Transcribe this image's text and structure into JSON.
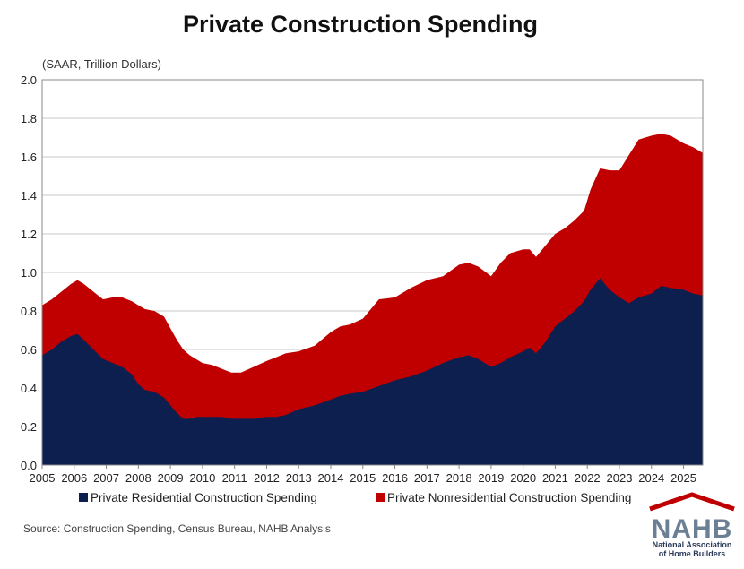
{
  "chart_data": {
    "type": "area",
    "title": "Private Construction Spending",
    "units_note": "(SAAR, Trillion Dollars)",
    "ylim": [
      0,
      2.0
    ],
    "yticks": [
      "0.0",
      "0.2",
      "0.4",
      "0.6",
      "0.8",
      "1.0",
      "1.2",
      "1.4",
      "1.6",
      "1.8",
      "2.0"
    ],
    "xlim": [
      2005,
      2025.6
    ],
    "xticks": [
      "2005",
      "2006",
      "2007",
      "2008",
      "2009",
      "2010",
      "2011",
      "2012",
      "2013",
      "2014",
      "2015",
      "2016",
      "2017",
      "2018",
      "2019",
      "2020",
      "2021",
      "2022",
      "2023",
      "2024",
      "2025"
    ],
    "grid": true,
    "stacked": true,
    "legend_position": "bottom",
    "series": [
      {
        "name": "Private Residential Construction Spending",
        "color": "#0d1f4f",
        "points": [
          [
            2005.0,
            0.57
          ],
          [
            2005.3,
            0.6
          ],
          [
            2005.6,
            0.64
          ],
          [
            2005.9,
            0.67
          ],
          [
            2006.1,
            0.68
          ],
          [
            2006.3,
            0.65
          ],
          [
            2006.6,
            0.6
          ],
          [
            2006.9,
            0.55
          ],
          [
            2007.2,
            0.53
          ],
          [
            2007.5,
            0.51
          ],
          [
            2007.8,
            0.47
          ],
          [
            2008.0,
            0.42
          ],
          [
            2008.2,
            0.39
          ],
          [
            2008.5,
            0.38
          ],
          [
            2008.8,
            0.35
          ],
          [
            2009.0,
            0.31
          ],
          [
            2009.2,
            0.27
          ],
          [
            2009.4,
            0.24
          ],
          [
            2009.6,
            0.24
          ],
          [
            2009.8,
            0.25
          ],
          [
            2010.0,
            0.25
          ],
          [
            2010.3,
            0.25
          ],
          [
            2010.6,
            0.25
          ],
          [
            2010.9,
            0.24
          ],
          [
            2011.2,
            0.24
          ],
          [
            2011.6,
            0.24
          ],
          [
            2012.0,
            0.25
          ],
          [
            2012.3,
            0.25
          ],
          [
            2012.6,
            0.26
          ],
          [
            2013.0,
            0.29
          ],
          [
            2013.5,
            0.31
          ],
          [
            2014.0,
            0.34
          ],
          [
            2014.3,
            0.36
          ],
          [
            2014.6,
            0.37
          ],
          [
            2015.0,
            0.38
          ],
          [
            2015.5,
            0.41
          ],
          [
            2016.0,
            0.44
          ],
          [
            2016.5,
            0.46
          ],
          [
            2017.0,
            0.49
          ],
          [
            2017.5,
            0.53
          ],
          [
            2018.0,
            0.56
          ],
          [
            2018.3,
            0.57
          ],
          [
            2018.6,
            0.55
          ],
          [
            2019.0,
            0.51
          ],
          [
            2019.3,
            0.53
          ],
          [
            2019.6,
            0.56
          ],
          [
            2020.0,
            0.59
          ],
          [
            2020.2,
            0.61
          ],
          [
            2020.4,
            0.58
          ],
          [
            2020.7,
            0.64
          ],
          [
            2021.0,
            0.72
          ],
          [
            2021.3,
            0.76
          ],
          [
            2021.6,
            0.8
          ],
          [
            2021.9,
            0.85
          ],
          [
            2022.1,
            0.91
          ],
          [
            2022.4,
            0.97
          ],
          [
            2022.7,
            0.91
          ],
          [
            2023.0,
            0.87
          ],
          [
            2023.3,
            0.84
          ],
          [
            2023.6,
            0.87
          ],
          [
            2024.0,
            0.89
          ],
          [
            2024.3,
            0.93
          ],
          [
            2024.6,
            0.92
          ],
          [
            2025.0,
            0.91
          ],
          [
            2025.3,
            0.89
          ],
          [
            2025.6,
            0.88
          ]
        ]
      },
      {
        "name": "Private Nonresidential Construction Spending",
        "color": "#c00000",
        "points": [
          [
            2005.0,
            0.26
          ],
          [
            2005.3,
            0.26
          ],
          [
            2005.6,
            0.26
          ],
          [
            2005.9,
            0.27
          ],
          [
            2006.1,
            0.28
          ],
          [
            2006.3,
            0.29
          ],
          [
            2006.6,
            0.3
          ],
          [
            2006.9,
            0.31
          ],
          [
            2007.2,
            0.34
          ],
          [
            2007.5,
            0.36
          ],
          [
            2007.8,
            0.38
          ],
          [
            2008.0,
            0.41
          ],
          [
            2008.2,
            0.42
          ],
          [
            2008.5,
            0.42
          ],
          [
            2008.8,
            0.42
          ],
          [
            2009.0,
            0.4
          ],
          [
            2009.2,
            0.38
          ],
          [
            2009.4,
            0.36
          ],
          [
            2009.6,
            0.33
          ],
          [
            2009.8,
            0.3
          ],
          [
            2010.0,
            0.28
          ],
          [
            2010.3,
            0.27
          ],
          [
            2010.6,
            0.25
          ],
          [
            2010.9,
            0.24
          ],
          [
            2011.2,
            0.24
          ],
          [
            2011.6,
            0.27
          ],
          [
            2012.0,
            0.29
          ],
          [
            2012.3,
            0.31
          ],
          [
            2012.6,
            0.32
          ],
          [
            2013.0,
            0.3
          ],
          [
            2013.5,
            0.31
          ],
          [
            2014.0,
            0.35
          ],
          [
            2014.3,
            0.36
          ],
          [
            2014.6,
            0.36
          ],
          [
            2015.0,
            0.38
          ],
          [
            2015.5,
            0.45
          ],
          [
            2016.0,
            0.43
          ],
          [
            2016.5,
            0.46
          ],
          [
            2017.0,
            0.47
          ],
          [
            2017.5,
            0.45
          ],
          [
            2018.0,
            0.48
          ],
          [
            2018.3,
            0.48
          ],
          [
            2018.6,
            0.48
          ],
          [
            2019.0,
            0.47
          ],
          [
            2019.3,
            0.52
          ],
          [
            2019.6,
            0.54
          ],
          [
            2020.0,
            0.53
          ],
          [
            2020.2,
            0.51
          ],
          [
            2020.4,
            0.5
          ],
          [
            2020.7,
            0.5
          ],
          [
            2021.0,
            0.48
          ],
          [
            2021.3,
            0.47
          ],
          [
            2021.6,
            0.47
          ],
          [
            2021.9,
            0.47
          ],
          [
            2022.1,
            0.52
          ],
          [
            2022.4,
            0.57
          ],
          [
            2022.7,
            0.62
          ],
          [
            2023.0,
            0.66
          ],
          [
            2023.3,
            0.77
          ],
          [
            2023.6,
            0.82
          ],
          [
            2024.0,
            0.82
          ],
          [
            2024.3,
            0.79
          ],
          [
            2024.6,
            0.79
          ],
          [
            2025.0,
            0.76
          ],
          [
            2025.3,
            0.76
          ],
          [
            2025.6,
            0.74
          ]
        ]
      }
    ]
  },
  "source_note": "Source: Construction Spending, Census Bureau, NAHB Analysis",
  "logo": {
    "abbrev": "NAHB",
    "line1": "National Association",
    "line2": "of Home Builders"
  }
}
